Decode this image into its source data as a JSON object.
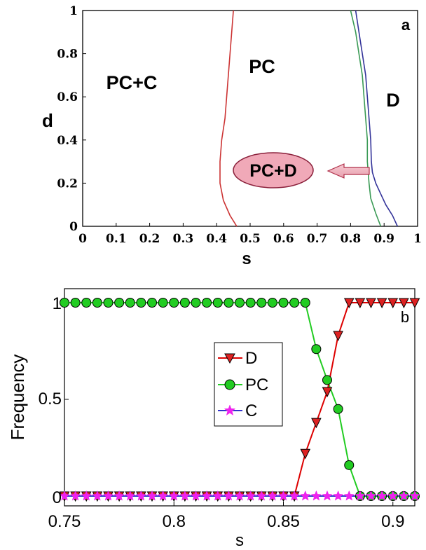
{
  "chart_data": [
    {
      "type": "line",
      "panel_label": "a",
      "xlabel": "s",
      "ylabel": "d",
      "xlim": [
        0,
        1
      ],
      "ylim": [
        0,
        1
      ],
      "xticks": [
        "0",
        "0.1",
        "0.2",
        "0.3",
        "0.4",
        "0.5",
        "0.6",
        "0.7",
        "0.8",
        "0.9",
        "1"
      ],
      "yticks": [
        "0",
        "0.2",
        "0.4",
        "0.6",
        "0.8",
        "1"
      ],
      "region_labels": [
        "PC+C",
        "PC",
        "D",
        "PC+D"
      ],
      "grid": false,
      "series": [
        {
          "color": "#cc3333",
          "points": [
            [
              0.46,
              0.0
            ],
            [
              0.44,
              0.05
            ],
            [
              0.42,
              0.12
            ],
            [
              0.41,
              0.2
            ],
            [
              0.41,
              0.3
            ],
            [
              0.415,
              0.4
            ],
            [
              0.425,
              0.5
            ],
            [
              0.43,
              0.6
            ],
            [
              0.435,
              0.7
            ],
            [
              0.44,
              0.8
            ],
            [
              0.445,
              0.9
            ],
            [
              0.45,
              1.0
            ]
          ]
        },
        {
          "color": "#3a9a55",
          "points": [
            [
              0.89,
              0.0
            ],
            [
              0.875,
              0.06
            ],
            [
              0.86,
              0.13
            ],
            [
              0.855,
              0.2
            ],
            [
              0.85,
              0.3
            ],
            [
              0.85,
              0.4
            ],
            [
              0.845,
              0.5
            ],
            [
              0.84,
              0.6
            ],
            [
              0.835,
              0.7
            ],
            [
              0.825,
              0.8
            ],
            [
              0.815,
              0.9
            ],
            [
              0.8,
              1.0
            ]
          ]
        },
        {
          "color": "#333399",
          "points": [
            [
              0.94,
              0.0
            ],
            [
              0.925,
              0.05
            ],
            [
              0.905,
              0.1
            ],
            [
              0.89,
              0.15
            ],
            [
              0.875,
              0.2
            ],
            [
              0.865,
              0.25
            ],
            [
              0.862,
              0.3
            ],
            [
              0.86,
              0.4
            ],
            [
              0.855,
              0.5
            ],
            [
              0.85,
              0.6
            ],
            [
              0.845,
              0.7
            ],
            [
              0.835,
              0.8
            ],
            [
              0.825,
              0.9
            ],
            [
              0.815,
              1.0
            ]
          ]
        }
      ]
    },
    {
      "type": "line",
      "panel_label": "b",
      "xlabel": "s",
      "ylabel": "Frequency",
      "xlim": [
        0.75,
        0.91
      ],
      "ylim": [
        0,
        1
      ],
      "xticks": [
        "0.75",
        "0.8",
        "0.85",
        "0.9"
      ],
      "yticks": [
        "0",
        "0.5",
        "1"
      ],
      "legend_position": "center",
      "grid": false,
      "x": [
        0.75,
        0.755,
        0.76,
        0.765,
        0.77,
        0.775,
        0.78,
        0.785,
        0.79,
        0.795,
        0.8,
        0.805,
        0.81,
        0.815,
        0.82,
        0.825,
        0.83,
        0.835,
        0.84,
        0.845,
        0.85,
        0.855,
        0.86,
        0.865,
        0.87,
        0.875,
        0.88,
        0.885,
        0.89,
        0.895,
        0.9,
        0.905,
        0.91
      ],
      "series": [
        {
          "name": "D",
          "marker": "triangle-down",
          "line_color": "#dd0000",
          "marker_color": "#dd2222",
          "values": [
            0,
            0,
            0,
            0,
            0,
            0,
            0,
            0,
            0,
            0,
            0,
            0,
            0,
            0,
            0,
            0,
            0,
            0,
            0,
            0,
            0,
            0,
            0.22,
            0.38,
            0.54,
            0.83,
            1,
            1,
            1,
            1,
            1,
            1,
            1
          ]
        },
        {
          "name": "PC",
          "marker": "circle",
          "line_color": "#22cc22",
          "marker_color": "#22cc22",
          "values": [
            1,
            1,
            1,
            1,
            1,
            1,
            1,
            1,
            1,
            1,
            1,
            1,
            1,
            1,
            1,
            1,
            1,
            1,
            1,
            1,
            1,
            1,
            1,
            0.76,
            0.6,
            0.45,
            0.16,
            0,
            0,
            0,
            0,
            0,
            0
          ]
        },
        {
          "name": "C",
          "marker": "star",
          "line_color": "#3333cc",
          "marker_color": "#ee22ee",
          "values": [
            0,
            0,
            0,
            0,
            0,
            0,
            0,
            0,
            0,
            0,
            0,
            0,
            0,
            0,
            0,
            0,
            0,
            0,
            0,
            0,
            0,
            0,
            0,
            0,
            0,
            0,
            0,
            0,
            0,
            0,
            0,
            0,
            0
          ]
        }
      ]
    }
  ]
}
